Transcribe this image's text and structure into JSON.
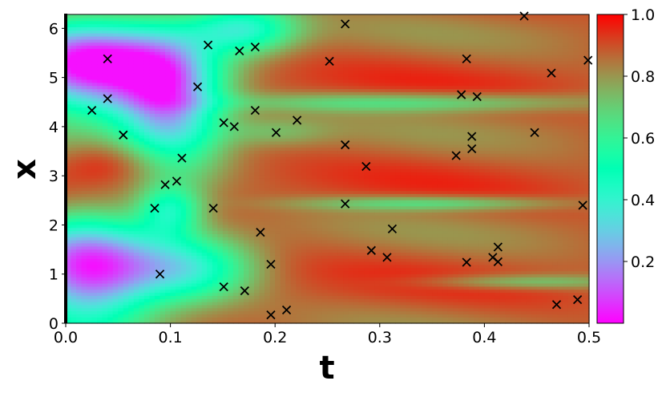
{
  "chart_data": {
    "type": "heatmap",
    "title": "",
    "xlabel": "t",
    "ylabel": "x",
    "xlim": [
      0.0,
      0.5
    ],
    "ylim": [
      0.0,
      6.283
    ],
    "xticks": [
      "0.0",
      "0.1",
      "0.2",
      "0.3",
      "0.4",
      "0.5"
    ],
    "yticks": [
      "0",
      "1",
      "2",
      "3",
      "4",
      "5",
      "6"
    ],
    "colorbar": {
      "colormap": "rainbow",
      "range": [
        0.0,
        1.0
      ],
      "ticks": [
        "0.2",
        "0.4",
        "0.6",
        "0.8",
        "1.0"
      ]
    },
    "markers": {
      "symbol": "x",
      "color": "#000000",
      "points": [
        {
          "t": 0.025,
          "x": 4.33
        },
        {
          "t": 0.04,
          "x": 5.38
        },
        {
          "t": 0.04,
          "x": 4.57
        },
        {
          "t": 0.055,
          "x": 3.83
        },
        {
          "t": 0.085,
          "x": 2.34
        },
        {
          "t": 0.09,
          "x": 1.0
        },
        {
          "t": 0.095,
          "x": 2.82
        },
        {
          "t": 0.106,
          "x": 2.89
        },
        {
          "t": 0.111,
          "x": 3.36
        },
        {
          "t": 0.126,
          "x": 4.81
        },
        {
          "t": 0.136,
          "x": 5.66
        },
        {
          "t": 0.141,
          "x": 2.34
        },
        {
          "t": 0.151,
          "x": 4.08
        },
        {
          "t": 0.151,
          "x": 0.74
        },
        {
          "t": 0.161,
          "x": 4.0
        },
        {
          "t": 0.166,
          "x": 5.54
        },
        {
          "t": 0.171,
          "x": 0.66
        },
        {
          "t": 0.181,
          "x": 5.62
        },
        {
          "t": 0.181,
          "x": 4.33
        },
        {
          "t": 0.186,
          "x": 1.85
        },
        {
          "t": 0.196,
          "x": 1.2
        },
        {
          "t": 0.196,
          "x": 0.17
        },
        {
          "t": 0.201,
          "x": 3.88
        },
        {
          "t": 0.211,
          "x": 0.27
        },
        {
          "t": 0.221,
          "x": 4.13
        },
        {
          "t": 0.252,
          "x": 5.33
        },
        {
          "t": 0.267,
          "x": 6.09
        },
        {
          "t": 0.267,
          "x": 3.63
        },
        {
          "t": 0.267,
          "x": 2.43
        },
        {
          "t": 0.287,
          "x": 3.19
        },
        {
          "t": 0.292,
          "x": 1.48
        },
        {
          "t": 0.307,
          "x": 1.34
        },
        {
          "t": 0.312,
          "x": 1.92
        },
        {
          "t": 0.373,
          "x": 3.41
        },
        {
          "t": 0.378,
          "x": 4.65
        },
        {
          "t": 0.383,
          "x": 5.38
        },
        {
          "t": 0.383,
          "x": 1.24
        },
        {
          "t": 0.388,
          "x": 3.8
        },
        {
          "t": 0.388,
          "x": 3.55
        },
        {
          "t": 0.393,
          "x": 4.61
        },
        {
          "t": 0.408,
          "x": 1.34
        },
        {
          "t": 0.413,
          "x": 1.55
        },
        {
          "t": 0.413,
          "x": 1.25
        },
        {
          "t": 0.438,
          "x": 6.25
        },
        {
          "t": 0.448,
          "x": 3.88
        },
        {
          "t": 0.464,
          "x": 5.09
        },
        {
          "t": 0.469,
          "x": 0.38
        },
        {
          "t": 0.489,
          "x": 0.48
        },
        {
          "t": 0.494,
          "x": 2.4
        },
        {
          "t": 0.499,
          "x": 5.35
        }
      ]
    }
  }
}
